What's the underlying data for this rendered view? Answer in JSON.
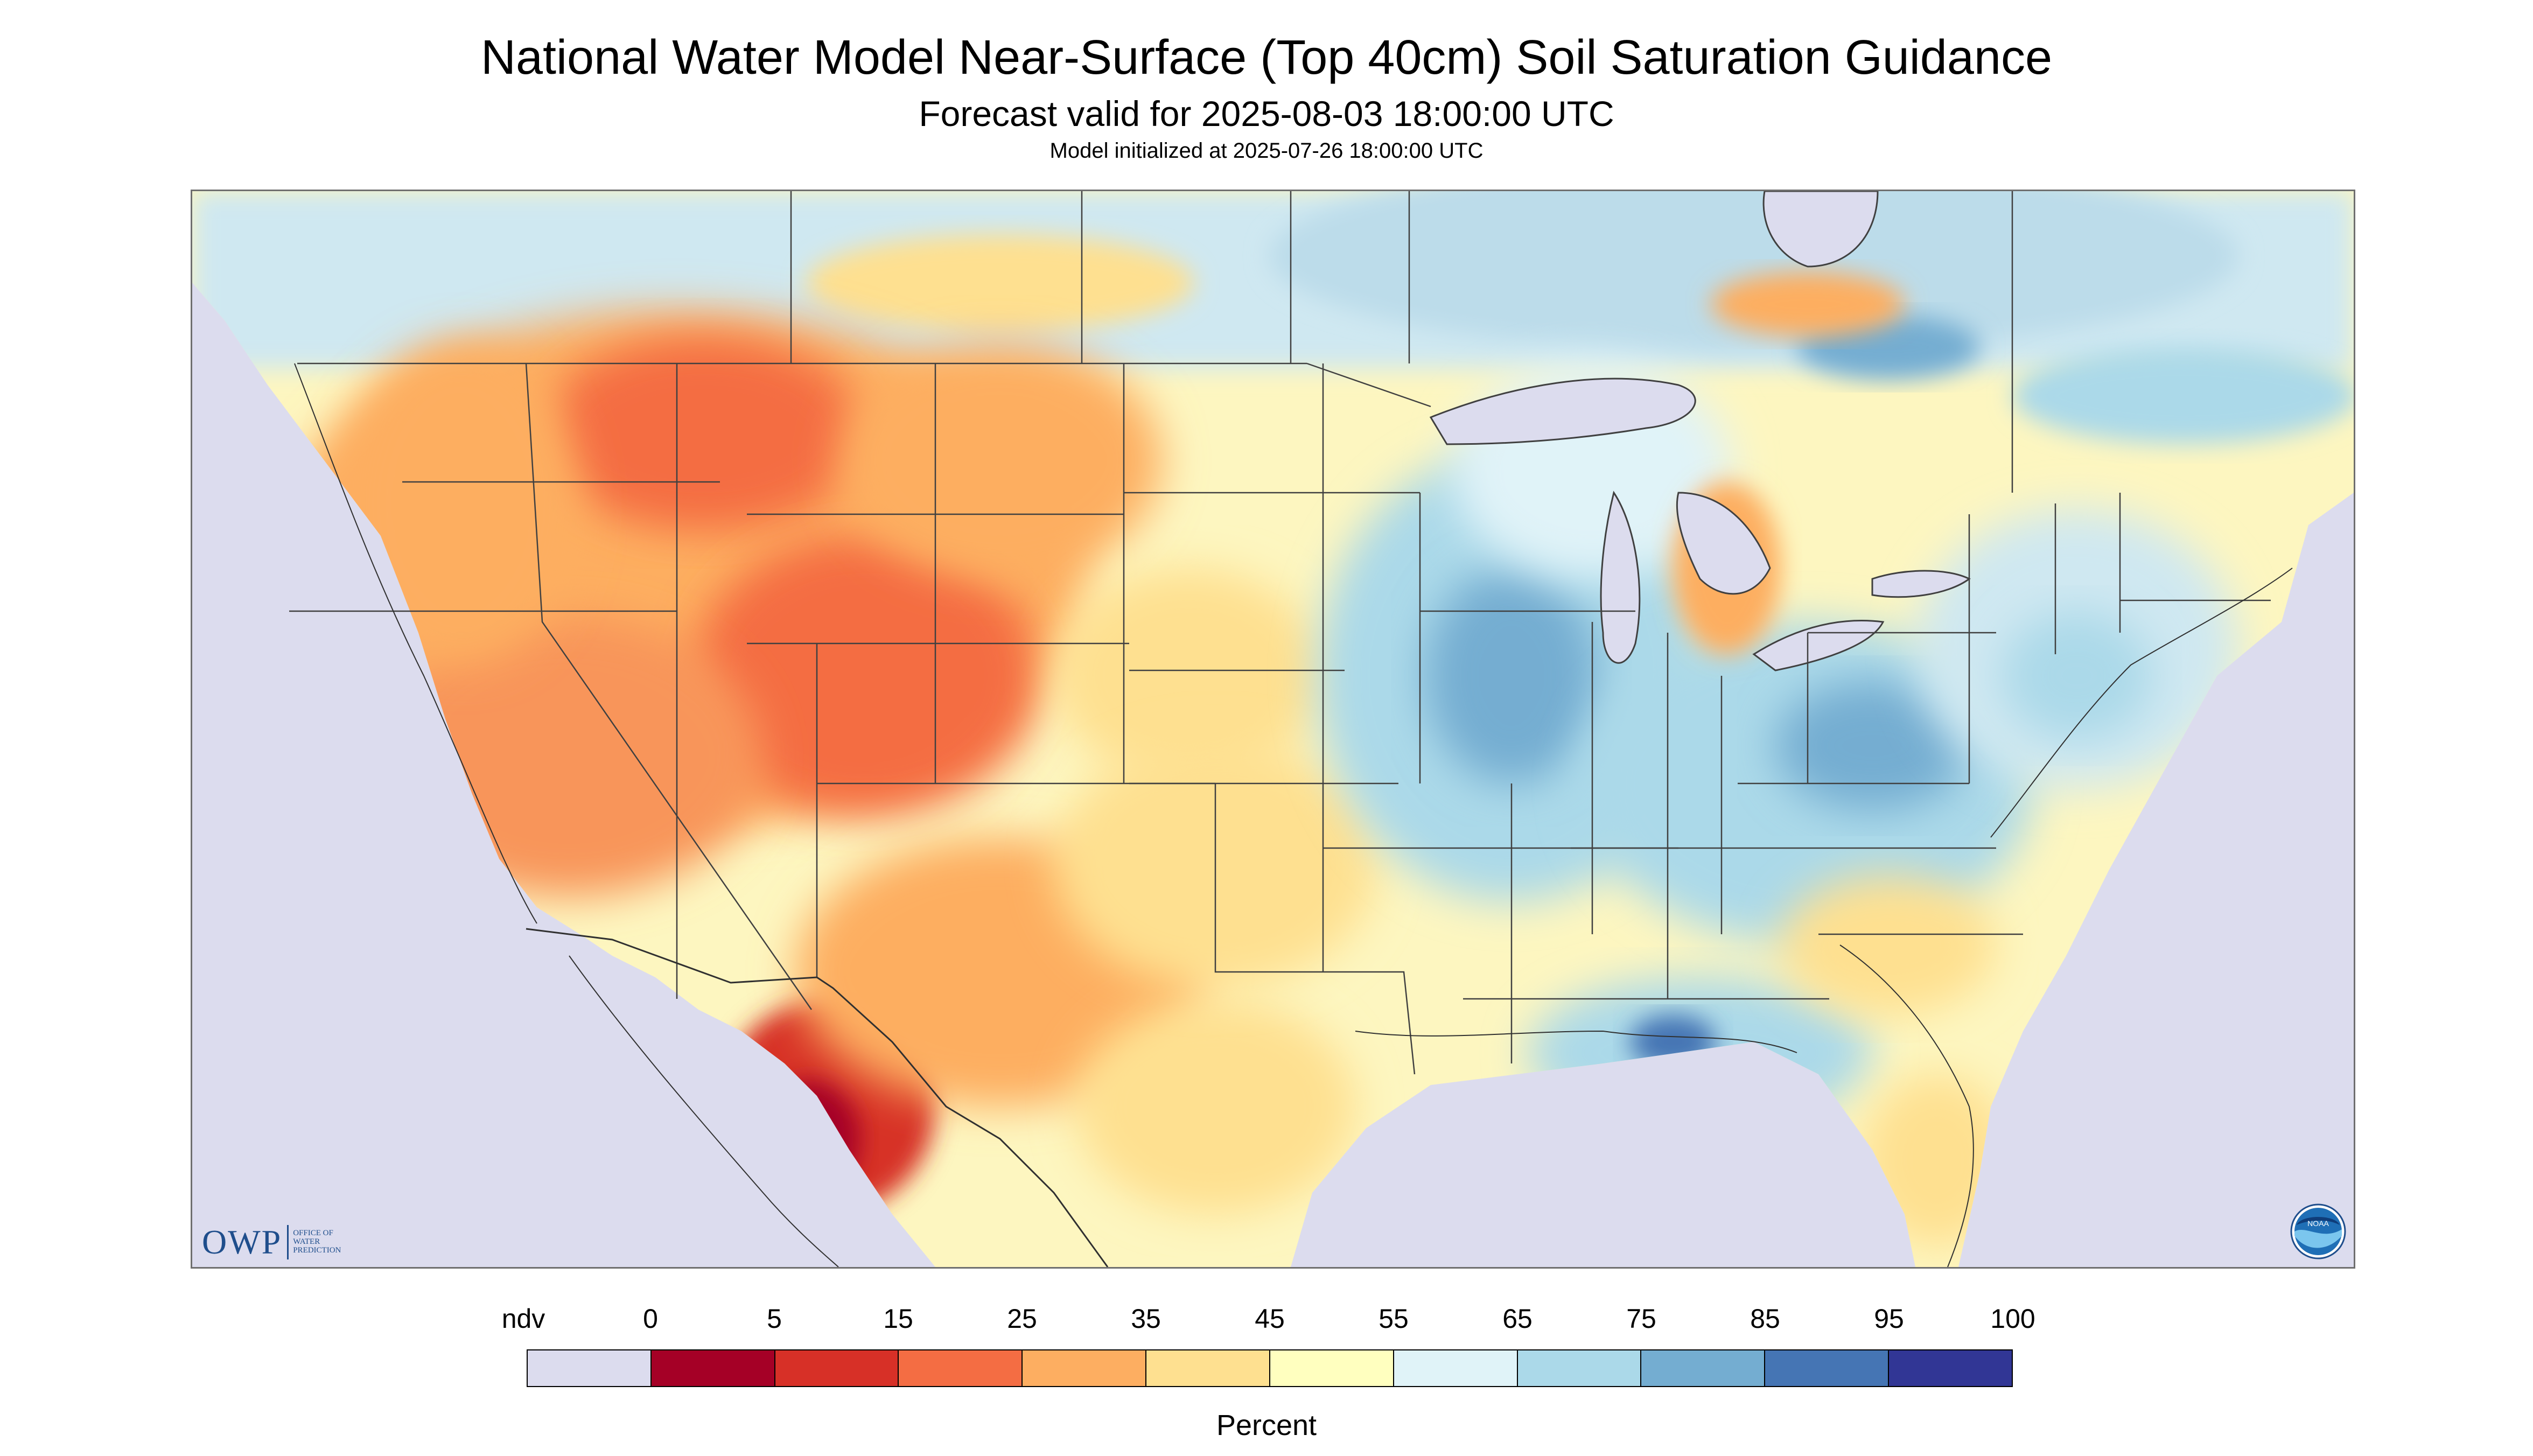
{
  "title": "National Water Model Near-Surface (Top 40cm) Soil Saturation Guidance",
  "subtitle": "Forecast valid for 2025-08-03 18:00:00 UTC",
  "model_init": "Model initialized at 2025-07-26 18:00:00 UTC",
  "logos": {
    "owp_mark": "OWP",
    "owp_text_lines": [
      "OFFICE OF",
      "WATER",
      "PREDICTION"
    ],
    "noaa_text": "NOAA"
  },
  "legend": {
    "title": "Percent",
    "bins": [
      {
        "label": "ndv",
        "color": "#dcdcee"
      },
      {
        "label": "0",
        "color": "#a50026"
      },
      {
        "label": "5",
        "color": "#d73027"
      },
      {
        "label": "15",
        "color": "#f46d43"
      },
      {
        "label": "25",
        "color": "#fdae61"
      },
      {
        "label": "35",
        "color": "#fee090"
      },
      {
        "label": "45",
        "color": "#ffffbf"
      },
      {
        "label": "55",
        "color": "#e0f3f8"
      },
      {
        "label": "65",
        "color": "#abd9e9"
      },
      {
        "label": "75",
        "color": "#74add1"
      },
      {
        "label": "85",
        "color": "#4575b4"
      },
      {
        "label": "95",
        "color": "#313695"
      },
      {
        "label": "100",
        "color": ""
      }
    ]
  },
  "map": {
    "no_data_color": "#dcdcee",
    "water_color": "#dcdcee",
    "border_color": "#404040"
  }
}
